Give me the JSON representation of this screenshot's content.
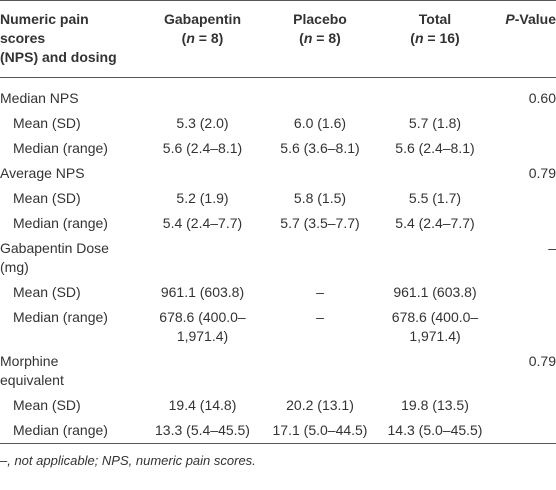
{
  "header": {
    "measure": [
      "Numeric pain",
      "scores",
      "(NPS) and dosing"
    ],
    "groups": [
      {
        "name": "Gabapentin",
        "n": [
          "(",
          "n",
          " = 8)"
        ]
      },
      {
        "name": "Placebo",
        "n": [
          "(",
          "n",
          " = 8)"
        ]
      },
      {
        "name": "Total",
        "n": [
          "(",
          "n",
          " = 16)"
        ]
      }
    ],
    "p_value": [
      "P",
      "-Value"
    ]
  },
  "table": {
    "sections": [
      {
        "label": "Median NPS",
        "p_value": "0.60",
        "rows": [
          {
            "label": "Mean (SD)",
            "cells": [
              "5.3 (2.0)",
              "6.0 (1.6)",
              "5.7 (1.8)"
            ]
          },
          {
            "label": "Median (range)",
            "cells": [
              "5.6 (2.4–8.1)",
              "5.6 (3.6–8.1)",
              "5.6 (2.4–8.1)"
            ]
          }
        ]
      },
      {
        "label": "Average NPS",
        "p_value": "0.79",
        "rows": [
          {
            "label": "Mean (SD)",
            "cells": [
              "5.2 (1.9)",
              "5.8 (1.5)",
              "5.5 (1.7)"
            ]
          },
          {
            "label": "Median (range)",
            "cells": [
              "5.4 (2.4–7.7)",
              "5.7 (3.5–7.7)",
              "5.4 (2.4–7.7)"
            ]
          }
        ]
      },
      {
        "label": "Gabapentin Dose (mg)",
        "p_value": "–",
        "rows": [
          {
            "label": "Mean (SD)",
            "cells": [
              "961.1 (603.8)",
              "–",
              "961.1 (603.8)"
            ]
          },
          {
            "label": "Median (range)",
            "cells": [
              "678.6 (400.0–1,971.4)",
              "–",
              "678.6 (400.0–1,971.4)"
            ]
          }
        ]
      },
      {
        "label": "Morphine equivalent",
        "p_value": "0.79",
        "rows": [
          {
            "label": "Mean (SD)",
            "cells": [
              "19.4 (14.8)",
              "20.2 (13.1)",
              "19.8 (13.5)"
            ]
          },
          {
            "label": "Median (range)",
            "cells": [
              "13.3 (5.4–45.5)",
              "17.1 (5.0–44.5)",
              "14.3 (5.0–45.5)"
            ]
          }
        ]
      }
    ]
  },
  "footnote": "–, not applicable; NPS, numeric pain scores."
}
